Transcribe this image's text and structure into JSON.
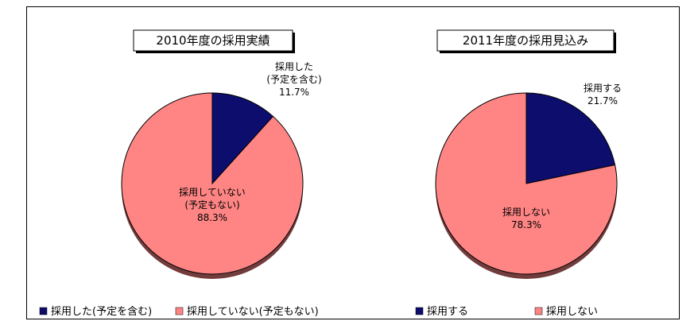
{
  "chart_data": [
    {
      "type": "pie",
      "title": "2010年度の採用実績",
      "slices": [
        {
          "name": "採用した(予定を含む)",
          "value": 11.7,
          "color": "#0d0d6e",
          "label_lines": [
            "採用した",
            "(予定を含む)",
            "11.7%"
          ]
        },
        {
          "name": "採用していない(予定もない)",
          "value": 88.3,
          "color": "#ff8585",
          "label_lines": [
            "採用していない",
            "(予定もない)",
            "88.3%"
          ]
        }
      ],
      "legend": {
        "placement": "bottom",
        "items": [
          "採用した(予定を含む)",
          "採用していない(予定もない)"
        ]
      }
    },
    {
      "type": "pie",
      "title": "2011年度の採用見込み",
      "slices": [
        {
          "name": "採用する",
          "value": 21.7,
          "color": "#0d0d6e",
          "label_lines": [
            "採用する",
            "21.7%"
          ]
        },
        {
          "name": "採用しない",
          "value": 78.3,
          "color": "#ff8585",
          "label_lines": [
            "採用しない",
            "78.3%"
          ]
        }
      ],
      "legend": {
        "placement": "bottom",
        "items": [
          "採用する",
          "採用しない"
        ]
      }
    }
  ]
}
